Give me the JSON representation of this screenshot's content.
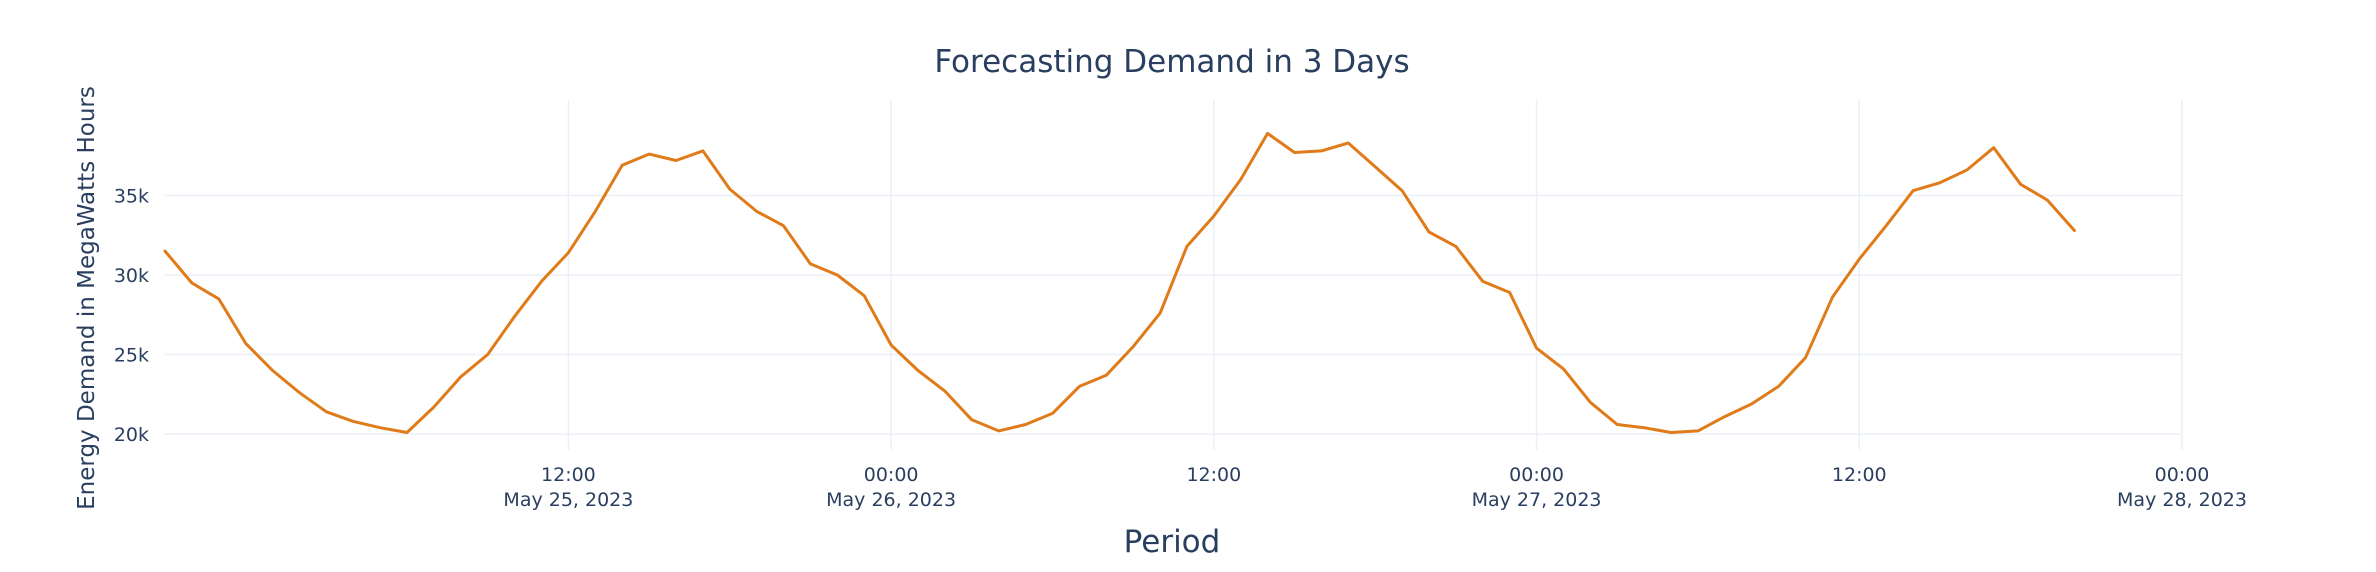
{
  "chart_data": {
    "type": "line",
    "title": "Forecasting Demand in 3 Days",
    "xlabel": "Period",
    "ylabel": "Energy Demand in MegaWatts Hours",
    "grid": true,
    "legend": "none",
    "color": "#e07b1a",
    "x_start": "2023-05-24T21:00",
    "x_step_hours": 1,
    "xlim": [
      "2023-05-24T21:00",
      "2023-05-28T00:00"
    ],
    "ylim": [
      19000,
      41000
    ],
    "y_ticks": [
      {
        "value": 20000,
        "label": "20k"
      },
      {
        "value": 25000,
        "label": "25k"
      },
      {
        "value": 30000,
        "label": "30k"
      },
      {
        "value": 35000,
        "label": "35k"
      }
    ],
    "x_ticks": [
      {
        "x": "2023-05-25T12:00",
        "time": "12:00",
        "date": "May 25, 2023"
      },
      {
        "x": "2023-05-26T00:00",
        "time": "00:00",
        "date": "May 26, 2023"
      },
      {
        "x": "2023-05-26T12:00",
        "time": "12:00",
        "date": ""
      },
      {
        "x": "2023-05-27T00:00",
        "time": "00:00",
        "date": "May 27, 2023"
      },
      {
        "x": "2023-05-27T12:00",
        "time": "12:00",
        "date": ""
      },
      {
        "x": "2023-05-28T00:00",
        "time": "00:00",
        "date": "May 28, 2023"
      }
    ],
    "values": [
      31500,
      29500,
      28500,
      25700,
      24000,
      22600,
      21400,
      20800,
      20400,
      20100,
      21700,
      23600,
      25000,
      27400,
      29600,
      31400,
      34000,
      36900,
      37600,
      37200,
      37800,
      35400,
      34000,
      33100,
      30700,
      30000,
      28700,
      25600,
      24000,
      22700,
      20900,
      20200,
      20600,
      21300,
      23000,
      23700,
      25500,
      27600,
      31800,
      33700,
      36000,
      38900,
      37700,
      37800,
      38300,
      36800,
      35300,
      32700,
      31800,
      29600,
      28900,
      25400,
      24100,
      22000,
      20600,
      20400,
      20100,
      20200,
      21100,
      21900,
      23000,
      24800,
      28600,
      31000,
      33100,
      35300,
      35800,
      36600,
      38000,
      35700,
      34700,
      32800
    ]
  }
}
